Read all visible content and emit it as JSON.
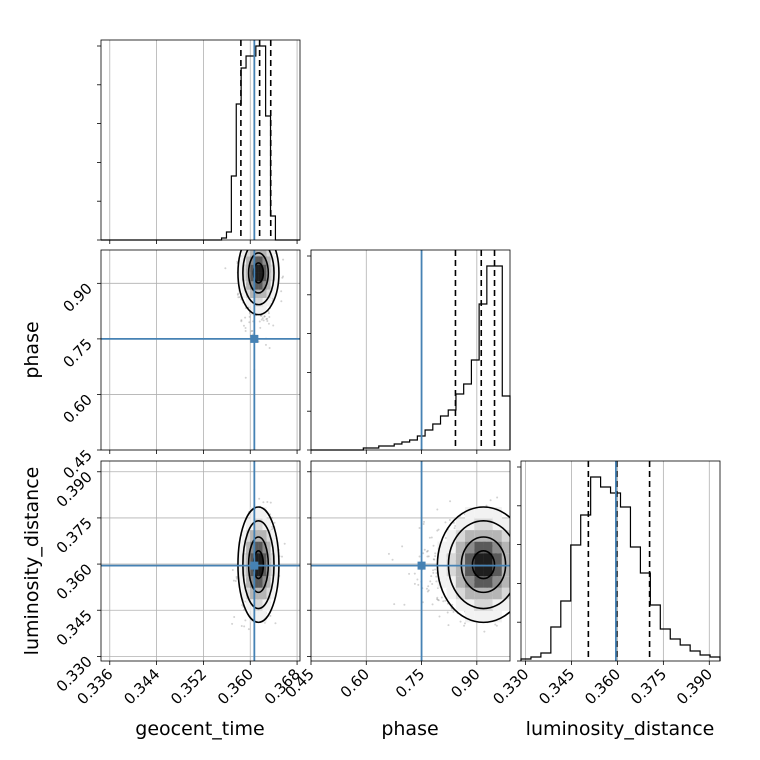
{
  "chart_data": {
    "type": "corner",
    "parameters": [
      "geocent_time",
      "phase",
      "luminosity_distance"
    ],
    "truth": {
      "geocent_time": 0.3607,
      "phase": 0.75,
      "luminosity_distance": 0.3595
    },
    "truth_color": "#4682b4",
    "colors": {
      "contour": "#000000",
      "grid": "#b0b0b0",
      "quantile": "#000000",
      "samples": "#7f7f7f"
    },
    "axes": {
      "geocent_time": {
        "range": [
          0.3345,
          0.3685
        ],
        "ticks": [
          "0.336",
          "0.344",
          "0.352",
          "0.360",
          "0.368"
        ]
      },
      "phase": {
        "range": [
          0.45,
          0.99
        ],
        "ticks": [
          "0.45",
          "0.60",
          "0.75",
          "0.90"
        ]
      },
      "luminosity_distance": {
        "range": [
          0.3285,
          0.3935
        ],
        "ticks": [
          "0.330",
          "0.345",
          "0.360",
          "0.375",
          "0.390"
        ]
      }
    },
    "quantiles": {
      "geocent_time": [
        0.3584,
        0.3616,
        0.3635
      ],
      "phase": [
        0.842,
        0.912,
        0.948
      ],
      "luminosity_distance": [
        0.3505,
        0.3598,
        0.3705
      ]
    },
    "marginals": {
      "geocent_time": {
        "range": [
          0.3551,
          0.3643
        ],
        "counts": [
          0.01,
          0.04,
          0.32,
          0.68,
          0.86,
          0.92,
          0.92,
          0.97,
          0.97,
          0.62,
          0.12
        ]
      },
      "phase": {
        "range": [
          0.592,
          0.99
        ],
        "counts": [
          0.01,
          0.01,
          0.02,
          0.02,
          0.03,
          0.04,
          0.05,
          0.07,
          0.1,
          0.13,
          0.17,
          0.2,
          0.28,
          0.33,
          0.45,
          0.73,
          0.92,
          0.92,
          0.27
        ]
      },
      "luminosity_distance": {
        "range": [
          0.3285,
          0.3935
        ],
        "counts": [
          0.01,
          0.02,
          0.04,
          0.17,
          0.3,
          0.58,
          0.73,
          0.92,
          0.87,
          0.84,
          0.77,
          0.57,
          0.44,
          0.28,
          0.16,
          0.11,
          0.08,
          0.05,
          0.03,
          0.02
        ]
      }
    },
    "posterior_2d": {
      "phase_vs_geocent_time": {
        "center": [
          0.3614,
          0.928
        ],
        "sigma": [
          0.0014,
          0.045
        ],
        "rho": 0.1
      },
      "luminosity_distance_vs_geocent_time": {
        "center": [
          0.3614,
          0.3598
        ],
        "sigma": [
          0.0014,
          0.0075
        ],
        "rho": 0.15
      },
      "luminosity_distance_vs_phase": {
        "center": [
          0.918,
          0.3598
        ],
        "sigma": [
          0.05,
          0.0075
        ],
        "rho": 0.0
      }
    },
    "xlabels": [
      "geocent_time",
      "phase",
      "luminosity_distance"
    ],
    "ylabels": [
      "phase",
      "luminosity_distance"
    ]
  }
}
